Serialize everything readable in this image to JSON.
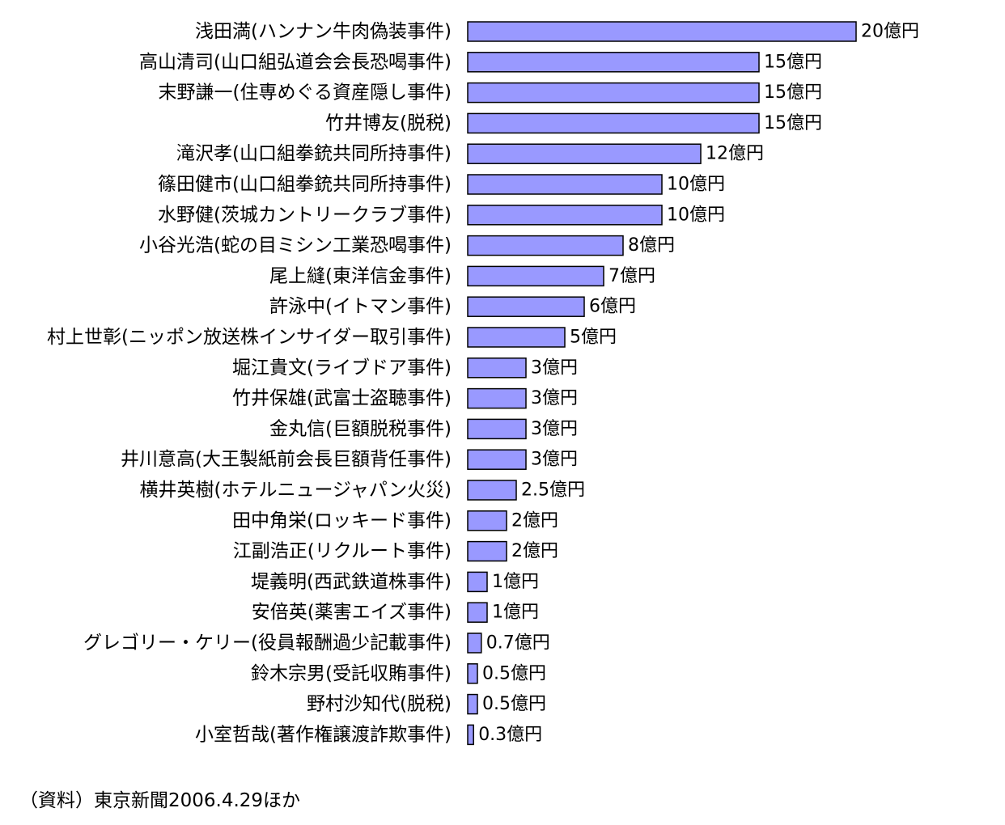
{
  "chart_data": {
    "type": "bar",
    "orientation": "horizontal",
    "categories": [
      "浅田満(ハンナン牛肉偽装事件)",
      "高山清司(山口組弘道会会長恐喝事件)",
      "末野謙一(住専めぐる資産隠し事件)",
      "竹井博友(脱税)",
      "滝沢孝(山口組拳銃共同所持事件)",
      "篠田健市(山口組拳銃共同所持事件)",
      "水野健(茨城カントリークラブ事件)",
      "小谷光浩(蛇の目ミシン工業恐喝事件)",
      "尾上縫(東洋信金事件)",
      "許泳中(イトマン事件)",
      "村上世彰(ニッポン放送株インサイダー取引事件)",
      "堀江貴文(ライブドア事件)",
      "竹井保雄(武富士盗聴事件)",
      "金丸信(巨額脱税事件)",
      "井川意高(大王製紙前会長巨額背任事件)",
      "横井英樹(ホテルニュージャパン火災)",
      "田中角栄(ロッキード事件)",
      "江副浩正(リクルート事件)",
      "堤義明(西武鉄道株事件)",
      "安倍英(薬害エイズ事件)",
      "グレゴリー・ケリー(役員報酬過少記載事件)",
      "鈴木宗男(受託収賄事件)",
      "野村沙知代(脱税)",
      "小室哲哉(著作権譲渡詐欺事件)"
    ],
    "values": [
      20,
      15,
      15,
      15,
      12,
      10,
      10,
      8,
      7,
      6,
      5,
      3,
      3,
      3,
      3,
      2.5,
      2,
      2,
      1,
      1,
      0.7,
      0.5,
      0.5,
      0.3
    ],
    "value_labels": [
      "20億円",
      "15億円",
      "15億円",
      "15億円",
      "12億円",
      "10億円",
      "10億円",
      "8億円",
      "7億円",
      "6億円",
      "5億円",
      "3億円",
      "3億円",
      "3億円",
      "3億円",
      "2.5億円",
      "2億円",
      "2億円",
      "1億円",
      "1億円",
      "0.7億円",
      "0.5億円",
      "0.5億円",
      "0.3億円"
    ],
    "xlim": [
      0,
      20
    ],
    "grid": false,
    "bar_fill": "#9999ff",
    "bar_stroke": "#000000"
  },
  "source_note": "（資料）東京新聞2006.4.29ほか"
}
